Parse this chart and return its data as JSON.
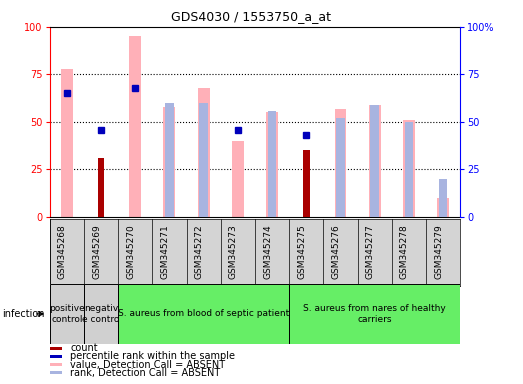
{
  "title": "GDS4030 / 1553750_a_at",
  "samples": [
    "GSM345268",
    "GSM345269",
    "GSM345270",
    "GSM345271",
    "GSM345272",
    "GSM345273",
    "GSM345274",
    "GSM345275",
    "GSM345276",
    "GSM345277",
    "GSM345278",
    "GSM345279"
  ],
  "count": [
    0,
    31,
    0,
    0,
    0,
    0,
    0,
    35,
    0,
    0,
    0,
    0
  ],
  "percentile_rank": [
    65,
    46,
    68,
    null,
    null,
    46,
    null,
    43,
    null,
    null,
    null,
    null
  ],
  "value_absent": [
    78,
    null,
    95,
    58,
    68,
    40,
    55,
    null,
    57,
    59,
    51,
    10
  ],
  "rank_absent": [
    null,
    null,
    null,
    60,
    60,
    null,
    56,
    null,
    52,
    59,
    50,
    20
  ],
  "groups": [
    {
      "label": "positive\ncontrol",
      "start": 0,
      "end": 1,
      "color": "#d0d0d0"
    },
    {
      "label": "negativ\ne contro",
      "start": 1,
      "end": 2,
      "color": "#d0d0d0"
    },
    {
      "label": "S. aureus from blood of septic patient",
      "start": 2,
      "end": 7,
      "color": "#66ee66"
    },
    {
      "label": "S. aureus from nares of healthy\ncarriers",
      "start": 7,
      "end": 12,
      "color": "#66ee66"
    }
  ],
  "count_color": "#aa0000",
  "rank_color": "#0000bb",
  "value_absent_color": "#ffb0b8",
  "rank_absent_color": "#a8b4e0",
  "fig_width": 5.23,
  "fig_height": 3.84,
  "dpi": 100
}
